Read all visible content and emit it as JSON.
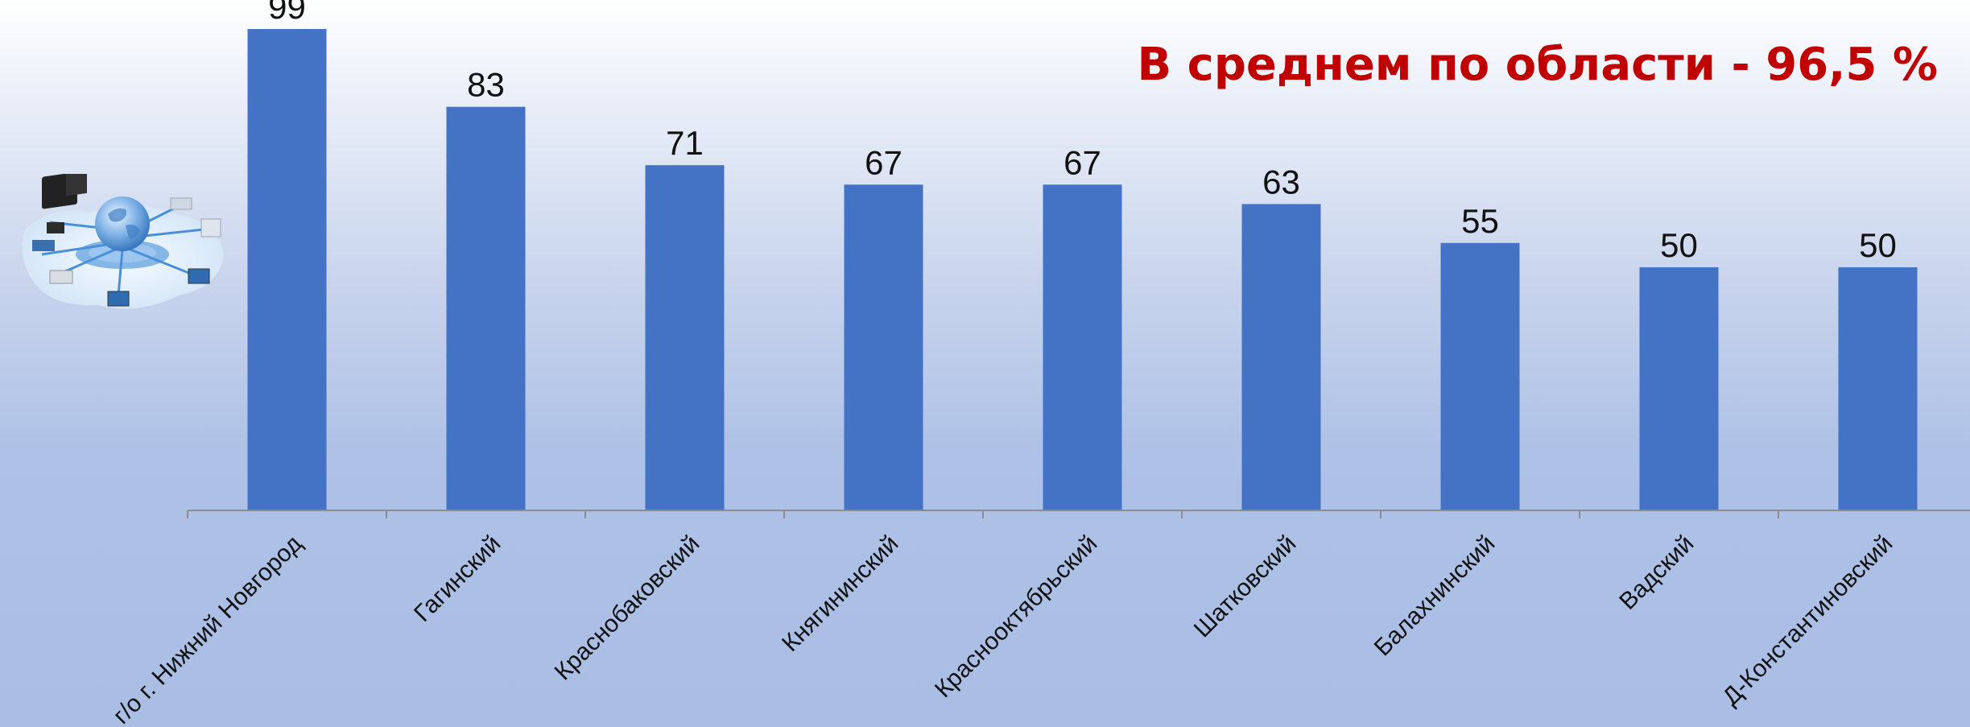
{
  "headline": "В среднем по области - 96,5 %",
  "logo": {
    "icon": "network-globe-icon"
  },
  "colors": {
    "bar": "#4472c4",
    "headline": "#c00000",
    "axis": "#8c8c8c"
  },
  "chart_data": {
    "type": "bar",
    "title": "",
    "xlabel": "",
    "ylabel": "",
    "categories": [
      "г/о г. Нижний Новгород",
      "Гагинский",
      "Краснобаковский",
      "Княгининский",
      "Краснооктябрьский",
      "Шатковский",
      "Балахнинский",
      "Вадский",
      "Д-Константиновский"
    ],
    "series": [
      {
        "values": [
          99,
          83,
          71,
          67,
          67,
          63,
          55,
          50,
          50
        ]
      }
    ],
    "ylim": [
      0,
      100
    ],
    "grid": false,
    "legend": "none",
    "data_labels": true
  }
}
